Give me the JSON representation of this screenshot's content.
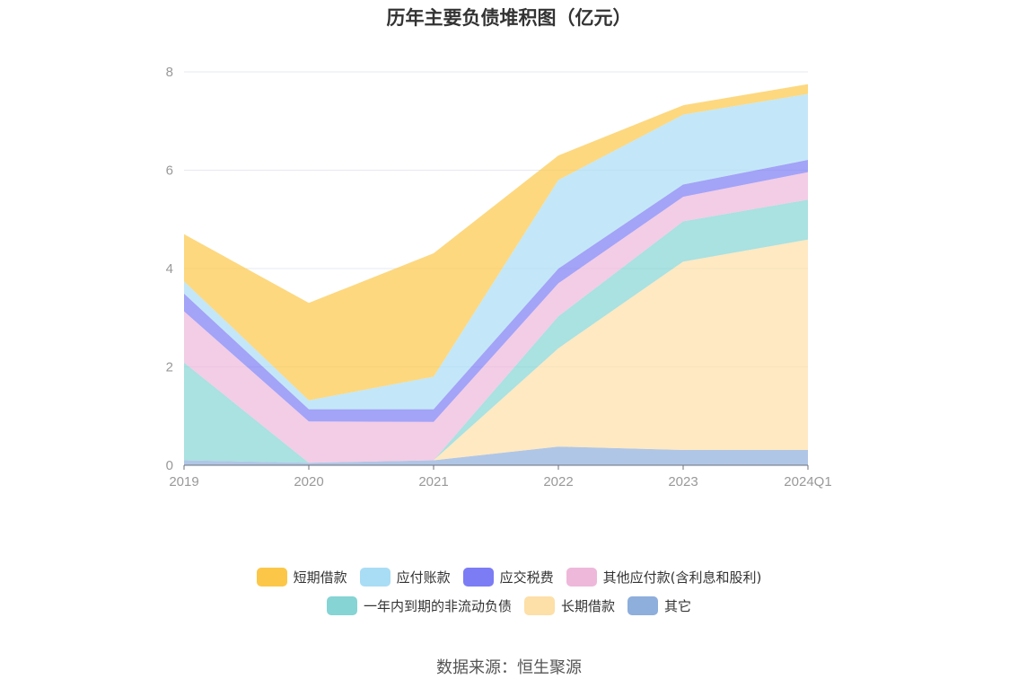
{
  "chart_data": {
    "type": "area",
    "stacked": true,
    "title": "历年主要负债堆积图（亿元）",
    "categories": [
      "2019",
      "2020",
      "2021",
      "2022",
      "2023",
      "2024Q1"
    ],
    "y_ticks": [
      "0",
      "2",
      "4",
      "6",
      "8"
    ],
    "ylim": [
      0,
      8
    ],
    "grid": true,
    "legend_position": "bottom",
    "series": [
      {
        "name": "其它",
        "color": "#8eaedc",
        "values": [
          0.1,
          0.05,
          0.1,
          0.38,
          0.31,
          0.31
        ]
      },
      {
        "name": "长期借款",
        "color": "#fddfa8",
        "values": [
          0,
          0,
          0,
          2.0,
          3.83,
          4.28
        ]
      },
      {
        "name": "一年内到期的非流动负债",
        "color": "#86d4d4",
        "values": [
          1.99,
          0,
          0,
          0.65,
          0.82,
          0.81
        ]
      },
      {
        "name": "其他应付款(含利息和股利)",
        "color": "#eeb8da",
        "values": [
          1.04,
          0.84,
          0.78,
          0.67,
          0.5,
          0.56
        ]
      },
      {
        "name": "应交税费",
        "color": "#7c7cf5",
        "values": [
          0.36,
          0.25,
          0.26,
          0.3,
          0.25,
          0.25
        ]
      },
      {
        "name": "应付账款",
        "color": "#a9ddf5",
        "values": [
          0.25,
          0.18,
          0.66,
          1.8,
          1.42,
          1.34
        ]
      },
      {
        "name": "短期借款",
        "color": "#fcc748",
        "values": [
          0.96,
          1.98,
          2.51,
          0.5,
          0.19,
          0.2
        ]
      }
    ]
  },
  "legend": {
    "row1": [
      {
        "name": "短期借款",
        "color": "#fcc748"
      },
      {
        "name": "应付账款",
        "color": "#a9ddf5"
      },
      {
        "name": "应交税费",
        "color": "#7c7cf5"
      },
      {
        "name": "其他应付款(含利息和股利)",
        "color": "#eeb8da"
      }
    ],
    "row2": [
      {
        "name": "一年内到期的非流动负债",
        "color": "#86d4d4"
      },
      {
        "name": "长期借款",
        "color": "#fddfa8"
      },
      {
        "name": "其它",
        "color": "#8eaedc"
      }
    ]
  },
  "source": "数据来源：恒生聚源"
}
